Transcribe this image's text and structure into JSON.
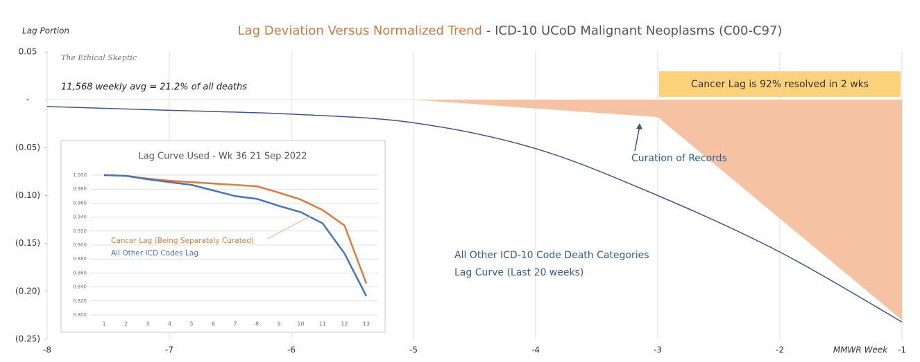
{
  "chart_data": [
    {
      "type": "line",
      "title": "Lag Deviation Versus Normalized Trend",
      "subtitle": "- ICD-10 UCoD Malignant Neoplasms (C00-C97)",
      "y_label": "Lag Portion",
      "x_label": "MMWR Week",
      "watermark": "The Ethical Skeptic",
      "annotations": [
        "11,568  weekly avg = 21.2% of all deaths",
        "Cancer Lag is 92% resolved in 2 wks",
        "Curation of Records",
        "All Other ICD-10 Code Death Categories",
        "Lag Curve (Last 20 weeks)"
      ],
      "xlim": [
        -8,
        -1
      ],
      "xticks": [
        -8,
        -7,
        -6,
        -5,
        -4,
        -3,
        -2,
        -1
      ],
      "ylim": [
        -0.25,
        0.05
      ],
      "yticks": [
        {
          "value": 0.05,
          "label": "0.05"
        },
        {
          "value": 0,
          "label": "-"
        },
        {
          "value": -0.05,
          "label": "(0.05)"
        },
        {
          "value": -0.1,
          "label": "(0.10)"
        },
        {
          "value": -0.15,
          "label": "(0.15)"
        },
        {
          "value": -0.2,
          "label": "(0.20)"
        },
        {
          "value": -0.25,
          "label": "(0.25)"
        }
      ],
      "grid": true,
      "series": [
        {
          "kind": "area",
          "color": "#f5c3a3",
          "x": [
            -5,
            -3,
            -1
          ],
          "values": [
            0,
            -0.018,
            -0.23
          ]
        },
        {
          "kind": "line",
          "color": "#3b5592",
          "x": [
            -8,
            -7,
            -6,
            -5,
            -4,
            -3,
            -2,
            -1
          ],
          "values": [
            -0.007,
            -0.011,
            -0.015,
            -0.024,
            -0.051,
            -0.1,
            -0.159,
            -0.232
          ]
        }
      ]
    },
    {
      "type": "line",
      "title": "Lag Curve Used - Wk 36 21 Sep 2022",
      "categories": [
        1,
        2,
        3,
        4,
        5,
        6,
        7,
        8,
        9,
        10,
        11,
        12,
        13
      ],
      "ylim": [
        0.8,
        1.0
      ],
      "yticks": [
        {
          "value": 0.8,
          "label": "0.800"
        },
        {
          "value": 0.82,
          "label": "0.820"
        },
        {
          "value": 0.84,
          "label": "0.840"
        },
        {
          "value": 0.86,
          "label": "0.860"
        },
        {
          "value": 0.88,
          "label": "0.880"
        },
        {
          "value": 0.9,
          "label": "0.900"
        },
        {
          "value": 0.92,
          "label": "0.920"
        },
        {
          "value": 0.94,
          "label": "0.940"
        },
        {
          "value": 0.96,
          "label": "0.960"
        },
        {
          "value": 0.98,
          "label": "0.980"
        },
        {
          "value": 1.0,
          "label": "1.000"
        }
      ],
      "grid": true,
      "series": [
        {
          "name": "Cancer Lag (Being Separately Curated)",
          "color": "#e07b3a",
          "values": [
            1.0,
            0.999,
            0.995,
            0.992,
            0.99,
            0.988,
            0.986,
            0.984,
            0.975,
            0.965,
            0.95,
            0.928,
            0.845
          ]
        },
        {
          "name": "All Other ICD Codes Lag",
          "color": "#4472c4",
          "values": [
            1.0,
            0.999,
            0.994,
            0.99,
            0.986,
            0.978,
            0.97,
            0.966,
            0.956,
            0.947,
            0.931,
            0.888,
            0.827
          ]
        }
      ]
    }
  ]
}
